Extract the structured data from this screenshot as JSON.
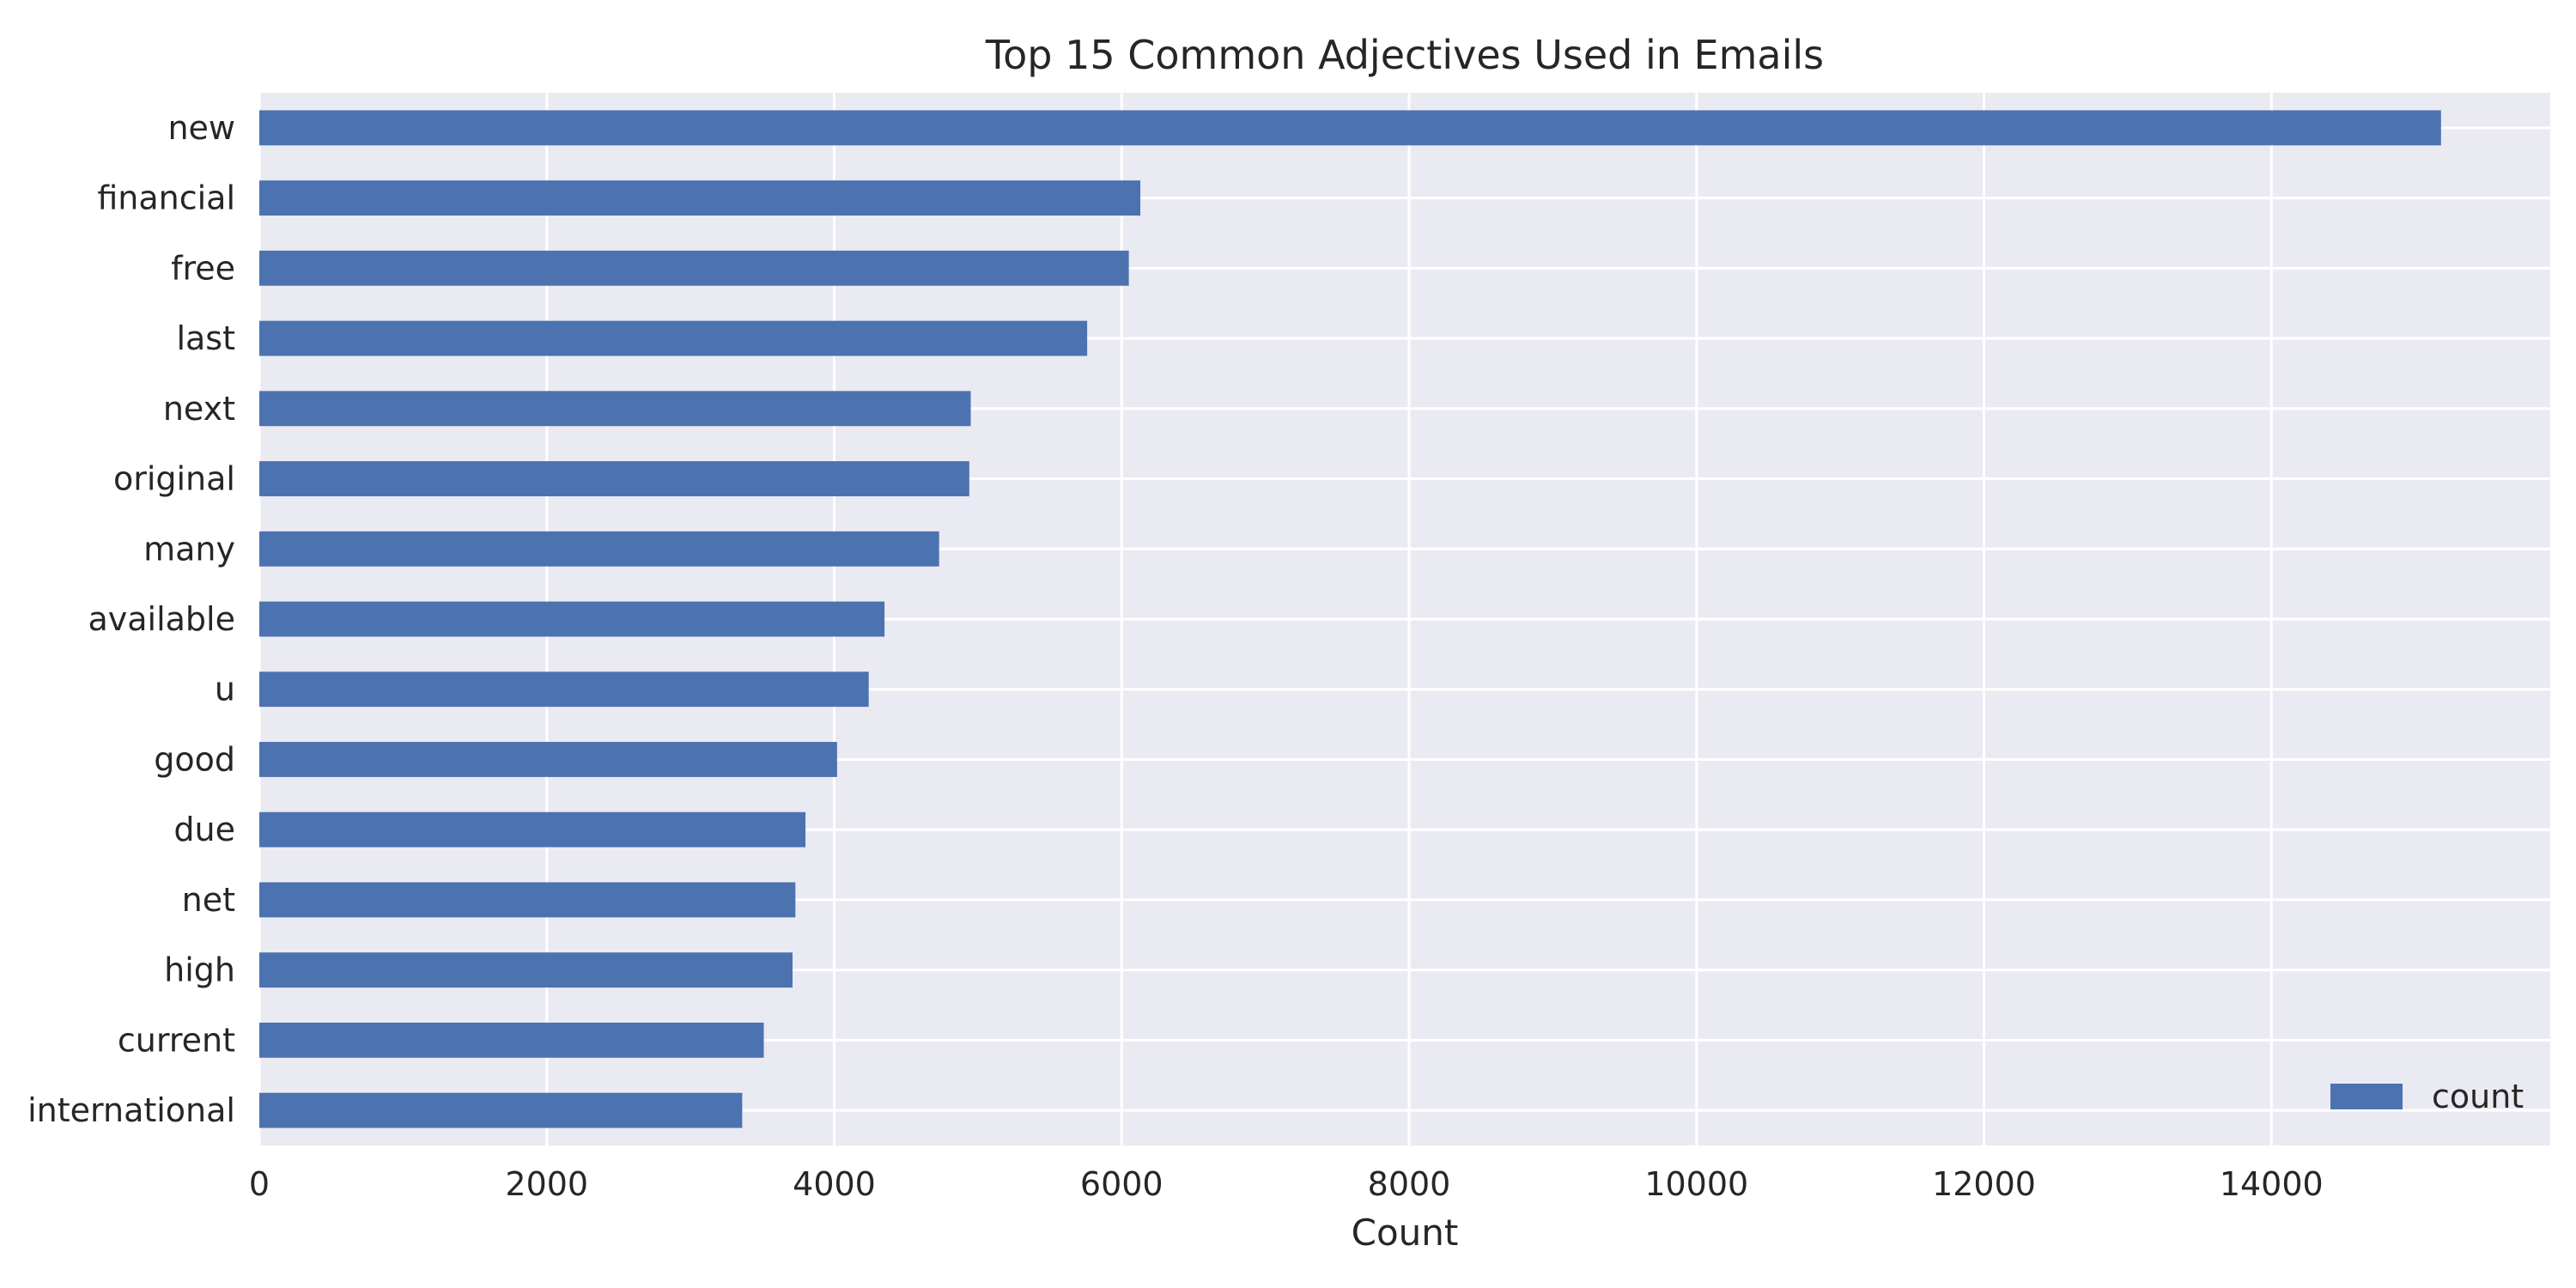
{
  "chart_data": {
    "type": "bar",
    "orientation": "horizontal",
    "title": "Top 15 Common Adjectives Used in Emails",
    "xlabel": "Count",
    "ylabel": "",
    "categories": [
      "new",
      "financial",
      "free",
      "last",
      "next",
      "original",
      "many",
      "available",
      "u",
      "good",
      "due",
      "net",
      "high",
      "current",
      "international"
    ],
    "series": [
      {
        "name": "count",
        "values": [
          15180,
          6130,
          6050,
          5760,
          4950,
          4940,
          4730,
          4350,
          4240,
          4020,
          3800,
          3730,
          3710,
          3510,
          3360
        ]
      }
    ],
    "xlim": [
      0,
      15940
    ],
    "xticks": [
      0,
      2000,
      4000,
      6000,
      8000,
      10000,
      12000,
      14000
    ],
    "xtick_labels": [
      "0",
      "2000",
      "4000",
      "6000",
      "8000",
      "10000",
      "12000",
      "14000"
    ],
    "grid": true,
    "legend_position": "bottom-right",
    "colors": {
      "bar": "#4c72b0",
      "plot_background": "#eaeaf2",
      "grid": "#ffffff",
      "text": "#262626"
    }
  }
}
